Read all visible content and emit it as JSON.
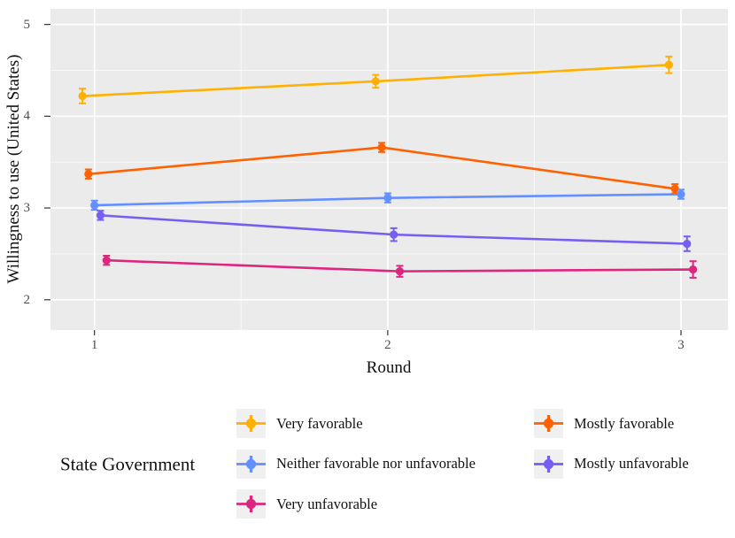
{
  "figure": {
    "background": "#FFFFFF",
    "panel_background": "#EBEBEB",
    "grid_major_color": "#FFFFFF",
    "grid_minor_color": "#F5F5F5",
    "tick_mark_color": "#333333",
    "tick_label_color": "#4D4D4D",
    "text_color": "#111111",
    "legend_key_background": "#F0F0F0"
  },
  "chart_data": {
    "type": "line",
    "title": "",
    "xlabel": "Round",
    "ylabel": "Willingness to use (United States)",
    "legend_title": "State Government",
    "legend_position": "bottom",
    "grid": true,
    "error_bars": true,
    "x": [
      1,
      2,
      3
    ],
    "x_tick_labels": [
      "1",
      "2",
      "3"
    ],
    "y_ticks": [
      2,
      3,
      4,
      5
    ],
    "y_tick_labels": [
      "2",
      "3",
      "4",
      "5"
    ],
    "x_minor_ticks": [
      1.5,
      2.5
    ],
    "y_minor_ticks": [
      2.5,
      3.5,
      4.5
    ],
    "xlim": [
      0.85,
      3.16
    ],
    "ylim": [
      1.67,
      5.17
    ],
    "series": [
      {
        "name": "Very favorable",
        "color": "#FFB000",
        "values": [
          4.22,
          4.38,
          4.56
        ],
        "se": [
          0.08,
          0.07,
          0.09
        ]
      },
      {
        "name": "Mostly favorable",
        "color": "#FE6100",
        "values": [
          3.37,
          3.66,
          3.21
        ],
        "se": [
          0.05,
          0.05,
          0.05
        ]
      },
      {
        "name": "Neither favorable nor unfavorable",
        "color": "#648FFF",
        "values": [
          3.03,
          3.11,
          3.15
        ],
        "se": [
          0.05,
          0.05,
          0.05
        ]
      },
      {
        "name": "Mostly unfavorable",
        "color": "#785EF0",
        "values": [
          2.92,
          2.71,
          2.61
        ],
        "se": [
          0.05,
          0.07,
          0.08
        ]
      },
      {
        "name": "Very unfavorable",
        "color": "#DC267F",
        "values": [
          2.43,
          2.31,
          2.33
        ],
        "se": [
          0.05,
          0.06,
          0.09
        ]
      }
    ],
    "legend_columns": [
      [
        0,
        2,
        4
      ],
      [
        1,
        3
      ]
    ]
  }
}
